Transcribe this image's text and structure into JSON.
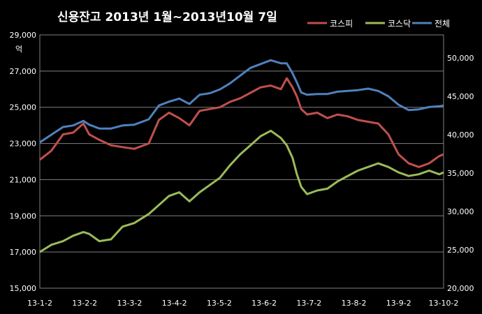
{
  "chart_data": {
    "type": "line",
    "title": "신용잔고 2013년 1월~2013년10월 7일",
    "left_axis_unit": "억",
    "left_ylim": [
      15000,
      29000
    ],
    "left_yticks": [
      "15,000",
      "17,000",
      "19,000",
      "21,000",
      "23,000",
      "25,000",
      "27,000",
      "29,000"
    ],
    "right_ylim": [
      20000,
      53000
    ],
    "right_yticks": [
      "20,000",
      "25,000",
      "30,000",
      "35,000",
      "40,000",
      "45,000",
      "50,000"
    ],
    "x_ticks": [
      "13-1-2",
      "13-2-2",
      "13-3-2",
      "13-4-2",
      "13-5-2",
      "13-6-2",
      "13-7-2",
      "13-8-2",
      "13-9-2",
      "13-10-2"
    ],
    "grid": true,
    "legend_position": "top-right",
    "series": [
      {
        "name": "코스피",
        "axis": "left",
        "color": "#c0504d",
        "x": [
          "2013-01-02",
          "2013-01-10",
          "2013-01-18",
          "2013-01-25",
          "2013-02-01",
          "2013-02-05",
          "2013-02-12",
          "2013-02-20",
          "2013-02-28",
          "2013-03-08",
          "2013-03-18",
          "2013-03-25",
          "2013-04-01",
          "2013-04-08",
          "2013-04-15",
          "2013-04-22",
          "2013-04-29",
          "2013-05-06",
          "2013-05-13",
          "2013-05-20",
          "2013-05-27",
          "2013-06-03",
          "2013-06-10",
          "2013-06-17",
          "2013-06-21",
          "2013-06-25",
          "2013-06-28",
          "2013-07-01",
          "2013-07-05",
          "2013-07-12",
          "2013-07-19",
          "2013-07-26",
          "2013-08-02",
          "2013-08-09",
          "2013-08-16",
          "2013-08-23",
          "2013-08-30",
          "2013-09-06",
          "2013-09-13",
          "2013-09-20",
          "2013-09-27",
          "2013-10-04",
          "2013-10-07"
        ],
        "values": [
          22100,
          22600,
          23500,
          23600,
          24100,
          23500,
          23200,
          22900,
          22800,
          22700,
          23000,
          24300,
          24700,
          24400,
          24000,
          24800,
          24900,
          25000,
          25300,
          25500,
          25800,
          26100,
          26200,
          26000,
          26600,
          26100,
          25600,
          24900,
          24600,
          24700,
          24400,
          24600,
          24500,
          24300,
          24200,
          24100,
          23500,
          22400,
          21900,
          21700,
          21900,
          22300,
          22400
        ]
      },
      {
        "name": "코스닥",
        "axis": "left",
        "color": "#9bbb59",
        "x": [
          "2013-01-02",
          "2013-01-10",
          "2013-01-18",
          "2013-01-25",
          "2013-02-01",
          "2013-02-05",
          "2013-02-12",
          "2013-02-20",
          "2013-02-28",
          "2013-03-08",
          "2013-03-18",
          "2013-03-25",
          "2013-04-01",
          "2013-04-08",
          "2013-04-15",
          "2013-04-22",
          "2013-04-29",
          "2013-05-06",
          "2013-05-13",
          "2013-05-20",
          "2013-05-27",
          "2013-06-03",
          "2013-06-10",
          "2013-06-17",
          "2013-06-21",
          "2013-06-25",
          "2013-06-28",
          "2013-07-01",
          "2013-07-05",
          "2013-07-12",
          "2013-07-19",
          "2013-07-26",
          "2013-08-02",
          "2013-08-09",
          "2013-08-16",
          "2013-08-23",
          "2013-08-30",
          "2013-09-06",
          "2013-09-13",
          "2013-09-20",
          "2013-09-27",
          "2013-10-04",
          "2013-10-07"
        ],
        "values": [
          17000,
          17400,
          17600,
          17900,
          18100,
          18000,
          17600,
          17700,
          18400,
          18600,
          19100,
          19600,
          20100,
          20300,
          19800,
          20300,
          20700,
          21100,
          21800,
          22400,
          22900,
          23400,
          23700,
          23300,
          22900,
          22200,
          21300,
          20600,
          20200,
          20400,
          20500,
          20900,
          21200,
          21500,
          21700,
          21900,
          21700,
          21400,
          21200,
          21300,
          21500,
          21300,
          21400
        ]
      },
      {
        "name": "전체",
        "axis": "right",
        "color": "#4f81bd",
        "x": [
          "2013-01-02",
          "2013-01-10",
          "2013-01-18",
          "2013-01-25",
          "2013-02-01",
          "2013-02-05",
          "2013-02-12",
          "2013-02-20",
          "2013-02-28",
          "2013-03-08",
          "2013-03-18",
          "2013-03-25",
          "2013-04-01",
          "2013-04-08",
          "2013-04-15",
          "2013-04-22",
          "2013-04-29",
          "2013-05-06",
          "2013-05-13",
          "2013-05-20",
          "2013-05-27",
          "2013-06-03",
          "2013-06-10",
          "2013-06-17",
          "2013-06-21",
          "2013-06-25",
          "2013-06-28",
          "2013-07-01",
          "2013-07-05",
          "2013-07-12",
          "2013-07-19",
          "2013-07-26",
          "2013-08-02",
          "2013-08-09",
          "2013-08-16",
          "2013-08-23",
          "2013-08-30",
          "2013-09-06",
          "2013-09-13",
          "2013-09-20",
          "2013-09-27",
          "2013-10-04",
          "2013-10-07"
        ],
        "values": [
          39000,
          40000,
          41000,
          41200,
          41800,
          41300,
          40800,
          40800,
          41200,
          41300,
          42000,
          43800,
          44300,
          44700,
          44000,
          45200,
          45400,
          45900,
          46700,
          47700,
          48700,
          49200,
          49700,
          49300,
          49300,
          48000,
          46800,
          45500,
          45200,
          45300,
          45300,
          45600,
          45700,
          45800,
          46000,
          45700,
          45000,
          43900,
          43200,
          43300,
          43600,
          43700,
          43800
        ]
      }
    ]
  }
}
